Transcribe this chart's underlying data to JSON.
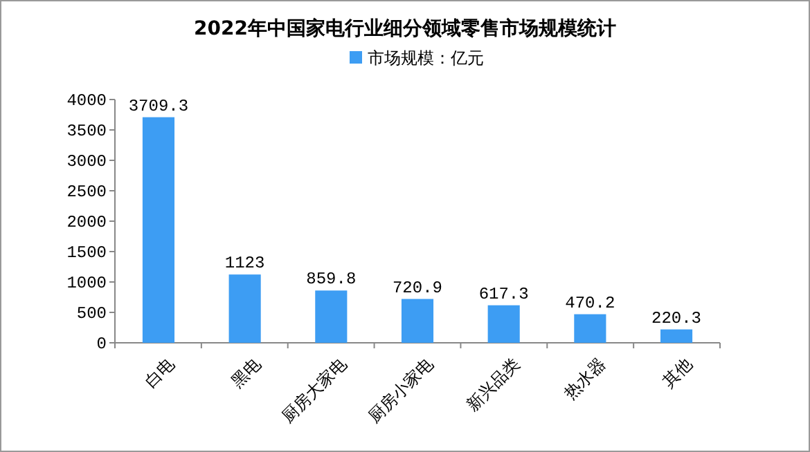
{
  "chart_data": {
    "type": "bar",
    "title": "2022年中国家电行业细分领域零售市场规模统计",
    "categories": [
      "白电",
      "黑电",
      "厨房大家电",
      "厨房小家电",
      "新兴品类",
      "热水器",
      "其他"
    ],
    "series": [
      {
        "name": "市场规模：亿元",
        "color": "#3d9df3",
        "values": [
          3709.3,
          1123,
          859.8,
          720.9,
          617.3,
          470.2,
          220.3
        ]
      }
    ],
    "ylim": [
      0,
      4000
    ],
    "yticks": [
      0,
      500,
      1000,
      1500,
      2000,
      2500,
      3000,
      3500,
      4000
    ],
    "data_labels": true,
    "legend": "top",
    "grid": false
  }
}
